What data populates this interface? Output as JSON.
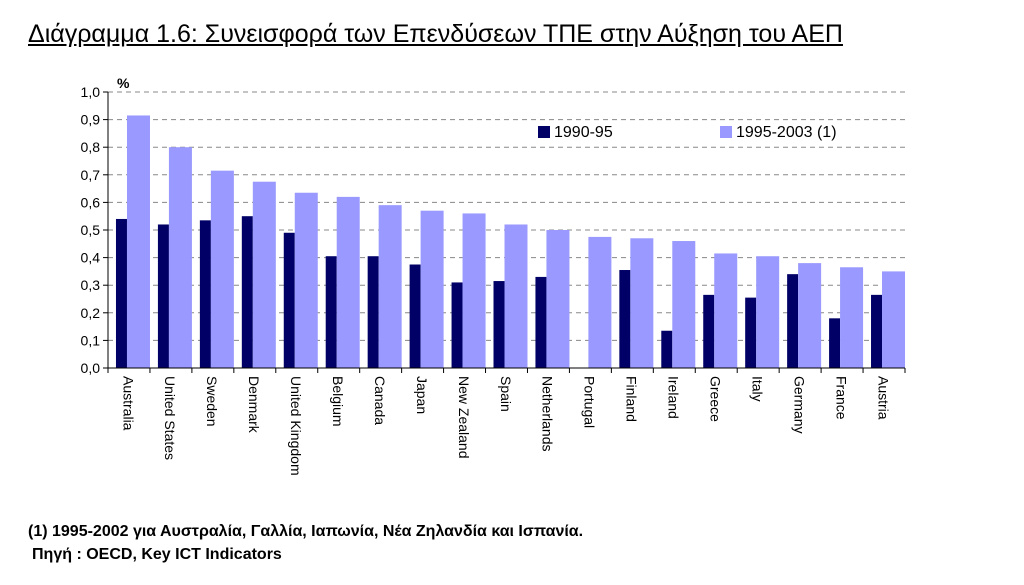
{
  "chart_data": {
    "type": "bar",
    "title": "Διάγραμμα 1.6: Συνεισφορά των Επενδύσεων ΤΠΕ στην Αύξηση του ΑΕΠ",
    "ylabel": "%",
    "xlabel": "",
    "ylim": [
      0,
      1.0
    ],
    "yticks": [
      "0,0",
      "0,1",
      "0,2",
      "0,3",
      "0,4",
      "0,5",
      "0,6",
      "0,7",
      "0,8",
      "0,9",
      "1,0"
    ],
    "grid": true,
    "legend_position": "top-right",
    "categories": [
      "Australia",
      "United States",
      "Sweden",
      "Denmark",
      "United Kingdom",
      "Belgium",
      "Canada",
      "Japan",
      "New Zealand",
      "Spain",
      "Netherlands",
      "Portugal",
      "Finland",
      "Ireland",
      "Greece",
      "Italy",
      "Germany",
      "France",
      "Austria"
    ],
    "series": [
      {
        "name": "1990-95",
        "color": "#000066",
        "values": [
          0.54,
          0.52,
          0.535,
          0.55,
          0.49,
          0.405,
          0.405,
          0.375,
          0.31,
          0.315,
          0.33,
          null,
          0.355,
          0.135,
          0.265,
          0.255,
          0.34,
          0.18,
          0.265
        ]
      },
      {
        "name": "1995-2003 (1)",
        "color": "#9999ff",
        "values": [
          0.915,
          0.8,
          0.715,
          0.675,
          0.635,
          0.62,
          0.59,
          0.57,
          0.56,
          0.52,
          0.5,
          0.475,
          0.47,
          0.46,
          0.415,
          0.405,
          0.38,
          0.365,
          0.35
        ]
      }
    ]
  },
  "footnote": "(1) 1995-2002 για Αυστραλία, Γαλλία, Ιαπωνία, Νέα Ζηλανδία και Ισπανία.",
  "source": "Πηγή : OECD, Key ICT Indicators"
}
